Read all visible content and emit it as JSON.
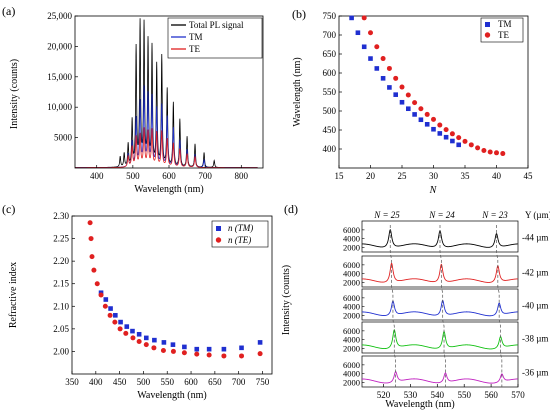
{
  "chart_data": [
    {
      "id": "a",
      "panel_label": "(a)",
      "type": "line",
      "xlabel": "Wavelength (nm)",
      "ylabel": "Intensity (counts)",
      "xlim": [
        340,
        860
      ],
      "ylim": [
        0,
        25000
      ],
      "xticks": [
        400,
        500,
        600,
        700,
        800
      ],
      "yticks": [
        5000,
        10000,
        15000,
        20000,
        25000
      ],
      "ytick_labels": [
        "5000",
        "10,000",
        "15,000",
        "20,000",
        "25,000"
      ],
      "legend": [
        "Total PL signal",
        "TM",
        "TE"
      ],
      "legend_position": "top-right",
      "grid": false,
      "series": [
        {
          "name": "Total PL signal",
          "color": "#000000",
          "modes": [
            {
              "x": 465,
              "y": 1800
            },
            {
              "x": 476,
              "y": 2300
            },
            {
              "x": 487,
              "y": 3800
            },
            {
              "x": 498,
              "y": 7600
            },
            {
              "x": 509,
              "y": 19500
            },
            {
              "x": 520,
              "y": 23500
            },
            {
              "x": 531,
              "y": 23200
            },
            {
              "x": 542,
              "y": 20500
            },
            {
              "x": 553,
              "y": 19600
            },
            {
              "x": 566,
              "y": 16700
            },
            {
              "x": 580,
              "y": 18200
            },
            {
              "x": 595,
              "y": 12800
            },
            {
              "x": 612,
              "y": 10600
            },
            {
              "x": 630,
              "y": 7900
            },
            {
              "x": 650,
              "y": 5100
            },
            {
              "x": 672,
              "y": 3900
            },
            {
              "x": 697,
              "y": 2500
            },
            {
              "x": 725,
              "y": 1200
            }
          ]
        },
        {
          "name": "TM",
          "color": "#2233cc",
          "modes": [
            {
              "x": 487,
              "y": 2200
            },
            {
              "x": 498,
              "y": 4200
            },
            {
              "x": 509,
              "y": 8000
            },
            {
              "x": 520,
              "y": 10600
            },
            {
              "x": 531,
              "y": 12800
            },
            {
              "x": 542,
              "y": 11800
            },
            {
              "x": 553,
              "y": 11500
            },
            {
              "x": 566,
              "y": 9600
            },
            {
              "x": 580,
              "y": 10200
            },
            {
              "x": 595,
              "y": 8300
            },
            {
              "x": 612,
              "y": 6500
            },
            {
              "x": 630,
              "y": 4500
            },
            {
              "x": 650,
              "y": 3000
            },
            {
              "x": 672,
              "y": 2200
            },
            {
              "x": 697,
              "y": 1300
            }
          ]
        },
        {
          "name": "TE",
          "color": "#e02020",
          "modes": [
            {
              "x": 487,
              "y": 1800
            },
            {
              "x": 498,
              "y": 3400
            },
            {
              "x": 509,
              "y": 5000
            },
            {
              "x": 520,
              "y": 5300
            },
            {
              "x": 531,
              "y": 6200
            },
            {
              "x": 542,
              "y": 5800
            },
            {
              "x": 553,
              "y": 6100
            },
            {
              "x": 566,
              "y": 5700
            },
            {
              "x": 580,
              "y": 5900
            },
            {
              "x": 595,
              "y": 4700
            },
            {
              "x": 612,
              "y": 4000
            },
            {
              "x": 630,
              "y": 3100
            },
            {
              "x": 650,
              "y": 2300
            },
            {
              "x": 672,
              "y": 1800
            }
          ]
        }
      ]
    },
    {
      "id": "b",
      "panel_label": "(b)",
      "type": "scatter",
      "xlabel": "N",
      "ylabel": "Wavelength (nm)",
      "xlim": [
        15,
        45
      ],
      "ylim": [
        350,
        750
      ],
      "xticks": [
        15,
        20,
        25,
        30,
        35,
        40,
        45
      ],
      "yticks": [
        400,
        450,
        500,
        550,
        600,
        650,
        700,
        750
      ],
      "legend": [
        "TM",
        "TE"
      ],
      "legend_position": "top-right",
      "grid": false,
      "series": [
        {
          "name": "TM",
          "color": "#1f2fd0",
          "marker": "square",
          "x": [
            17,
            18,
            19,
            20,
            21,
            22,
            23,
            24,
            25,
            26,
            27,
            28,
            29,
            30,
            31,
            32,
            33,
            34
          ],
          "y": [
            745,
            706,
            669,
            638,
            612,
            586,
            562,
            543,
            523,
            506,
            491,
            477,
            465,
            452,
            441,
            431,
            421,
            411
          ]
        },
        {
          "name": "TE",
          "color": "#e02020",
          "marker": "circle",
          "x": [
            19,
            20,
            21,
            22,
            23,
            24,
            25,
            26,
            27,
            28,
            29,
            30,
            31,
            32,
            33,
            34,
            35,
            36,
            37,
            38,
            39,
            40,
            41
          ],
          "y": [
            745,
            706,
            669,
            638,
            612,
            586,
            563,
            542,
            522,
            506,
            491,
            478,
            463,
            451,
            440,
            430,
            420,
            411,
            403,
            396,
            392,
            390,
            388
          ]
        }
      ]
    },
    {
      "id": "c",
      "panel_label": "(c)",
      "type": "scatter",
      "xlabel": "Wavelength (nm)",
      "ylabel": "Refractive index",
      "xlim": [
        350,
        770
      ],
      "ylim": [
        1.95,
        2.3
      ],
      "xticks": [
        350,
        400,
        450,
        500,
        550,
        600,
        650,
        700,
        750
      ],
      "yticks": [
        2.0,
        2.05,
        2.1,
        2.15,
        2.2,
        2.25,
        2.3
      ],
      "ytick_labels": [
        "2.00",
        "2.05",
        "2.10",
        "2.15",
        "2.20",
        "2.25",
        "2.30"
      ],
      "legend": [
        "n (TM)",
        "n (TE)"
      ],
      "legend_position": "top-right",
      "grid": false,
      "series": [
        {
          "name": "n (TM)",
          "color": "#1f2fd0",
          "marker": "square",
          "x": [
            411,
            421,
            431,
            441,
            452,
            465,
            477,
            491,
            506,
            523,
            543,
            562,
            586,
            612,
            638,
            669,
            706,
            745
          ],
          "y": [
            2.13,
            2.115,
            2.095,
            2.08,
            2.065,
            2.055,
            2.045,
            2.038,
            2.03,
            2.025,
            2.02,
            2.015,
            2.01,
            2.005,
            2.005,
            2.005,
            2.008,
            2.02
          ]
        },
        {
          "name": "n (TE)",
          "color": "#e02020",
          "marker": "circle",
          "x": [
            388,
            390,
            392,
            396,
            403,
            411,
            420,
            430,
            440,
            451,
            463,
            478,
            491,
            506,
            522,
            542,
            563,
            586,
            612,
            638,
            669,
            706,
            745
          ],
          "y": [
            2.285,
            2.25,
            2.21,
            2.18,
            2.15,
            2.125,
            2.1,
            2.08,
            2.065,
            2.05,
            2.04,
            2.03,
            2.022,
            2.015,
            2.008,
            2.002,
            2.0,
            1.997,
            1.994,
            1.992,
            1.99,
            1.99,
            1.995
          ]
        }
      ]
    },
    {
      "id": "d",
      "panel_label": "(d)",
      "type": "line",
      "xlabel": "Wavelength (nm)",
      "ylabel": "Intensity (counts)",
      "xlim": [
        512,
        570
      ],
      "xticks": [
        520,
        530,
        540,
        550,
        560,
        570
      ],
      "ylim": [
        1000,
        8000
      ],
      "yticks": [
        2000,
        4000,
        6000
      ],
      "mode_labels": [
        "N = 25",
        "N = 24",
        "N = 23"
      ],
      "y_header": "Y (µm)",
      "grid": false,
      "traces": [
        {
          "label": "44 µm",
          "color": "#000000",
          "peaks": [
            522.5,
            541.0,
            562.0
          ],
          "heights": [
            6500,
            6300,
            5600
          ]
        },
        {
          "label": "42 µm",
          "color": "#e02020",
          "peaks": [
            523.0,
            541.5,
            562.5
          ],
          "heights": [
            6800,
            6600,
            6200
          ]
        },
        {
          "label": "40 µm",
          "color": "#1f2fd0",
          "peaks": [
            523.5,
            542.0,
            563.0
          ],
          "heights": [
            5700,
            5900,
            5200
          ]
        },
        {
          "label": "38 µm",
          "color": "#10c010",
          "peaks": [
            524.0,
            542.5,
            563.5
          ],
          "heights": [
            6600,
            6300,
            5000
          ]
        },
        {
          "label": "36 µm",
          "color": "#c020c0",
          "peaks": [
            524.5,
            543.0,
            564.0
          ],
          "heights": [
            4800,
            4600,
            4200
          ]
        }
      ]
    }
  ]
}
